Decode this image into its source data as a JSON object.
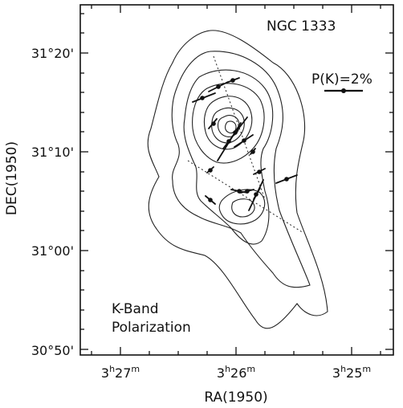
{
  "figure": {
    "object": "NGC 1333",
    "legend_label": "P(K)=2%",
    "panel_title_line1": "K-Band",
    "panel_title_line2": "Polarization",
    "x_axis_label": "RA(1950)",
    "y_axis_label": "DEC(1950)",
    "x_ticks": [
      {
        "h": "3",
        "m": "27"
      },
      {
        "h": "3",
        "m": "26"
      },
      {
        "h": "3",
        "m": "25"
      }
    ],
    "y_ticks": [
      "31°20'",
      "31°10'",
      "31°00'",
      "30°50'"
    ]
  }
}
